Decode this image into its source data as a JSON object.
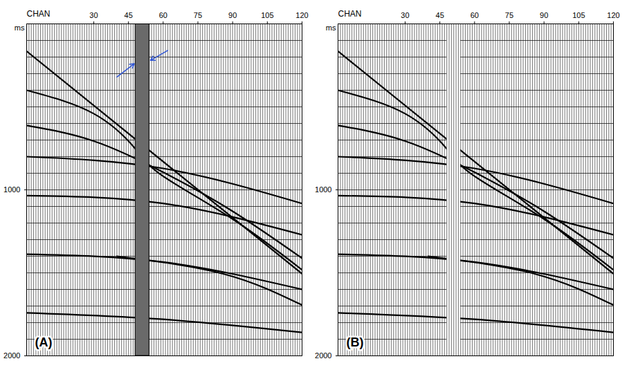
{
  "chart_data": [
    {
      "type": "wiggle",
      "panel_label": "(A)",
      "x_label": "CHAN",
      "y_label": "ms",
      "xlim": [
        1,
        120
      ],
      "xticks": [
        30,
        45,
        60,
        75,
        90,
        105,
        120
      ],
      "ylim": [
        0,
        2000
      ],
      "yticks": [
        1000,
        2000
      ],
      "grid": true,
      "ygrid": [
        100,
        200,
        300,
        400,
        500,
        600,
        700,
        800,
        900,
        1000,
        1100,
        1200,
        1300,
        1400,
        1500,
        1600,
        1700,
        1800,
        1900
      ],
      "noise_channels": [
        48,
        54
      ],
      "events": [
        {
          "channels": [
            1,
            120
          ],
          "ms": [
            165,
            1506
          ]
        },
        {
          "channels": [
            1,
            30,
            48,
            60,
            90,
            120
          ],
          "ms": [
            400,
            541,
            753,
            918,
            1176,
            1482
          ]
        },
        {
          "channels": [
            1,
            30,
            60,
            90,
            120
          ],
          "ms": [
            612,
            706,
            894,
            1129,
            1412
          ]
        },
        {
          "channels": [
            1,
            60,
            120
          ],
          "ms": [
            800,
            871,
            1082
          ]
        },
        {
          "channels": [
            1,
            60,
            120
          ],
          "ms": [
            1035,
            1082,
            1271
          ]
        },
        {
          "channels": [
            1,
            60,
            120
          ],
          "ms": [
            1388,
            1435,
            1600
          ]
        },
        {
          "channels": [
            40,
            86,
            120
          ],
          "ms": [
            1400,
            1506,
            1694
          ]
        },
        {
          "channels": [
            1,
            60,
            120
          ],
          "ms": [
            1741,
            1780,
            1859
          ]
        }
      ]
    },
    {
      "type": "wiggle",
      "panel_label": "(B)",
      "x_label": "CHAN",
      "y_label": "ms",
      "xlim": [
        1,
        120
      ],
      "xticks": [
        30,
        45,
        60,
        75,
        90,
        105,
        120
      ],
      "ylim": [
        0,
        2000
      ],
      "yticks": [
        1000,
        2000
      ],
      "grid": true,
      "ygrid": [
        100,
        200,
        300,
        400,
        500,
        600,
        700,
        800,
        900,
        1000,
        1100,
        1200,
        1300,
        1400,
        1500,
        1600,
        1700,
        1800,
        1900
      ],
      "killed_channels": [
        48,
        54
      ],
      "events": [
        {
          "channels": [
            1,
            120
          ],
          "ms": [
            165,
            1506
          ]
        },
        {
          "channels": [
            1,
            30,
            48,
            60,
            90,
            120
          ],
          "ms": [
            400,
            541,
            753,
            918,
            1176,
            1482
          ]
        },
        {
          "channels": [
            1,
            30,
            60,
            90,
            120
          ],
          "ms": [
            612,
            706,
            894,
            1129,
            1412
          ]
        },
        {
          "channels": [
            1,
            60,
            120
          ],
          "ms": [
            800,
            871,
            1082
          ]
        },
        {
          "channels": [
            1,
            60,
            120
          ],
          "ms": [
            1035,
            1082,
            1271
          ]
        },
        {
          "channels": [
            1,
            60,
            120
          ],
          "ms": [
            1388,
            1435,
            1600
          ]
        },
        {
          "channels": [
            40,
            86,
            120
          ],
          "ms": [
            1400,
            1506,
            1694
          ]
        },
        {
          "channels": [
            1,
            60,
            120
          ],
          "ms": [
            1741,
            1780,
            1859
          ]
        }
      ]
    }
  ]
}
